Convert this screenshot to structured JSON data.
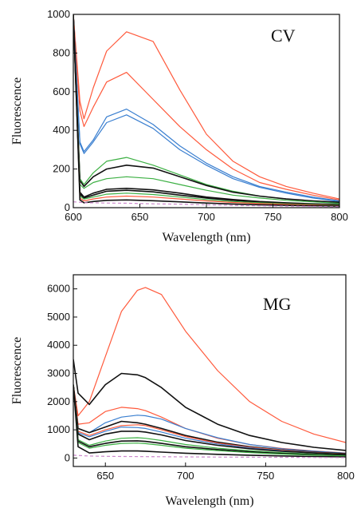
{
  "colors": {
    "red": "#ff5a3c",
    "blue": "#3a7fd0",
    "green": "#3cb043",
    "black": "#111111",
    "pink": "#cc88cc"
  },
  "chart_data": [
    {
      "type": "line",
      "label": "CV",
      "xlabel": "Wavelength (nm)",
      "ylabel": "Fluorescence",
      "xlim": [
        600,
        800
      ],
      "ylim": [
        0,
        1000
      ],
      "xticks": [
        "600",
        "650",
        "700",
        "750",
        "800"
      ],
      "yticks": [
        "0",
        "200",
        "400",
        "600",
        "800",
        "1000"
      ],
      "x": [
        600,
        605,
        608,
        615,
        625,
        640,
        660,
        680,
        700,
        720,
        740,
        760,
        780,
        800
      ],
      "series": [
        {
          "color": "red",
          "style": "solid",
          "values": [
            1000,
            550,
            460,
            620,
            810,
            910,
            860,
            610,
            380,
            240,
            160,
            110,
            75,
            45
          ]
        },
        {
          "color": "red",
          "style": "solid",
          "values": [
            1000,
            500,
            420,
            520,
            650,
            700,
            560,
            420,
            300,
            200,
            130,
            95,
            65,
            40
          ]
        },
        {
          "color": "blue",
          "style": "solid",
          "values": [
            1000,
            340,
            290,
            350,
            470,
            510,
            430,
            320,
            230,
            160,
            110,
            80,
            55,
            35
          ]
        },
        {
          "color": "blue",
          "style": "solid",
          "values": [
            1000,
            330,
            280,
            340,
            440,
            480,
            410,
            300,
            220,
            150,
            105,
            75,
            50,
            32
          ]
        },
        {
          "color": "green",
          "style": "solid",
          "values": [
            1000,
            150,
            120,
            180,
            240,
            260,
            220,
            170,
            120,
            85,
            60,
            45,
            35,
            25
          ]
        },
        {
          "color": "black",
          "style": "solid",
          "values": [
            1000,
            140,
            110,
            160,
            200,
            220,
            205,
            160,
            115,
            80,
            60,
            45,
            35,
            28
          ]
        },
        {
          "color": "green",
          "style": "solid",
          "values": [
            1000,
            120,
            100,
            130,
            150,
            160,
            150,
            120,
            90,
            65,
            50,
            38,
            30,
            22
          ]
        },
        {
          "color": "black",
          "style": "solid",
          "values": [
            1000,
            80,
            55,
            75,
            95,
            100,
            92,
            75,
            55,
            42,
            32,
            25,
            20,
            16
          ]
        },
        {
          "color": "black",
          "style": "solid",
          "values": [
            1000,
            70,
            50,
            65,
            85,
            90,
            82,
            65,
            50,
            38,
            29,
            22,
            18,
            14
          ]
        },
        {
          "color": "green",
          "style": "solid",
          "values": [
            1000,
            60,
            45,
            55,
            70,
            75,
            68,
            55,
            42,
            32,
            25,
            20,
            16,
            12
          ]
        },
        {
          "color": "red",
          "style": "solid",
          "values": [
            1000,
            50,
            35,
            45,
            55,
            60,
            55,
            45,
            35,
            27,
            21,
            17,
            14,
            10
          ]
        },
        {
          "color": "black",
          "style": "solid",
          "values": [
            1000,
            40,
            25,
            32,
            38,
            40,
            36,
            30,
            24,
            19,
            15,
            12,
            10,
            8
          ]
        },
        {
          "color": "pink",
          "style": "dashed",
          "values": [
            30,
            28,
            25,
            25,
            24,
            23,
            20,
            18,
            15,
            12,
            10,
            8,
            6,
            5
          ]
        }
      ]
    },
    {
      "type": "line",
      "label": "MG",
      "xlabel": "Wavelength (nm)",
      "ylabel": "Fluorescence",
      "xlim": [
        630,
        800
      ],
      "ylim": [
        -300,
        6500
      ],
      "xticks": [
        "650",
        "700",
        "750",
        "800"
      ],
      "xtick_values": [
        650,
        700,
        750,
        800
      ],
      "yticks": [
        "0",
        "1000",
        "2000",
        "3000",
        "4000",
        "5000",
        "6000"
      ],
      "x": [
        630,
        633,
        640,
        650,
        660,
        670,
        675,
        685,
        700,
        720,
        740,
        760,
        780,
        800
      ],
      "series": [
        {
          "color": "red",
          "style": "solid",
          "values": [
            2600,
            1500,
            2000,
            3600,
            5200,
            5950,
            6050,
            5800,
            4500,
            3100,
            2000,
            1300,
            850,
            550
          ]
        },
        {
          "color": "black",
          "style": "solid",
          "values": [
            3500,
            2300,
            1900,
            2600,
            3000,
            2950,
            2850,
            2500,
            1800,
            1200,
            800,
            550,
            380,
            270
          ]
        },
        {
          "color": "red",
          "style": "solid",
          "values": [
            2600,
            1200,
            1250,
            1650,
            1800,
            1750,
            1680,
            1450,
            1050,
            700,
            480,
            340,
            250,
            180
          ]
        },
        {
          "color": "blue",
          "style": "solid",
          "values": [
            2600,
            1050,
            900,
            1250,
            1450,
            1520,
            1500,
            1380,
            1050,
            720,
            480,
            330,
            240,
            170
          ]
        },
        {
          "color": "black",
          "style": "solid",
          "values": [
            2600,
            1050,
            900,
            1100,
            1300,
            1250,
            1200,
            1050,
            800,
            560,
            400,
            290,
            210,
            150
          ]
        },
        {
          "color": "red",
          "style": "solid",
          "values": [
            2600,
            950,
            800,
            1000,
            1150,
            1180,
            1150,
            1000,
            760,
            530,
            380,
            280,
            200,
            140
          ]
        },
        {
          "color": "blue",
          "style": "solid",
          "values": [
            2600,
            900,
            750,
            950,
            1100,
            1080,
            1050,
            920,
            700,
            500,
            360,
            260,
            190,
            130
          ]
        },
        {
          "color": "black",
          "style": "solid",
          "values": [
            2600,
            850,
            650,
            850,
            950,
            950,
            920,
            820,
            620,
            450,
            330,
            240,
            180,
            130
          ]
        },
        {
          "color": "green",
          "style": "solid",
          "values": [
            2600,
            650,
            450,
            600,
            700,
            720,
            700,
            620,
            480,
            350,
            260,
            190,
            140,
            100
          ]
        },
        {
          "color": "black",
          "style": "solid",
          "values": [
            2600,
            600,
            400,
            520,
            600,
            610,
            590,
            520,
            400,
            300,
            220,
            160,
            120,
            90
          ]
        },
        {
          "color": "green",
          "style": "solid",
          "values": [
            2600,
            550,
            350,
            450,
            520,
            530,
            510,
            450,
            350,
            260,
            190,
            140,
            100,
            75
          ]
        },
        {
          "color": "black",
          "style": "solid",
          "values": [
            2600,
            400,
            180,
            220,
            250,
            250,
            240,
            210,
            170,
            130,
            100,
            75,
            55,
            40
          ]
        },
        {
          "color": "pink",
          "style": "dashed",
          "values": [
            100,
            90,
            70,
            60,
            55,
            50,
            48,
            45,
            40,
            35,
            30,
            25,
            20,
            15
          ]
        }
      ]
    }
  ]
}
